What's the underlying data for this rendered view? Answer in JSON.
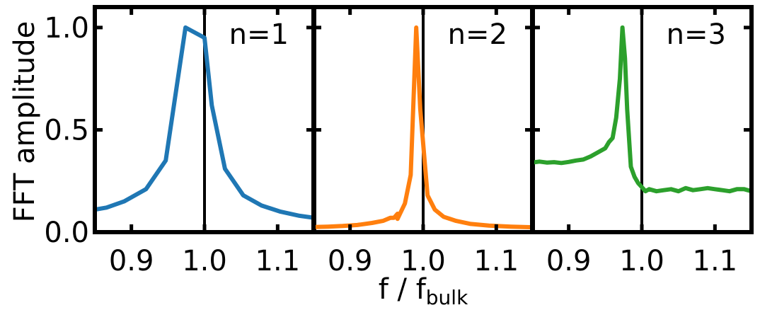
{
  "chart_data": {
    "type": "line",
    "ylabel": "FFT amplitude",
    "xlabel": "f / f",
    "xlabel_sub": "bulk",
    "xlim": [
      0.85,
      1.15
    ],
    "ylim": [
      0.0,
      1.1
    ],
    "xticks": [
      0.9,
      1.0,
      1.1
    ],
    "xtick_labels": [
      "0.9",
      "1.0",
      "1.1"
    ],
    "yticks": [
      0.0,
      0.5,
      1.0
    ],
    "ytick_labels": [
      "0.0",
      "0.5",
      "1.0"
    ],
    "reference_line_x": 1.0,
    "grid": false,
    "panels": [
      {
        "label": "n=1",
        "color": "#1f77b4",
        "x": [
          0.85,
          0.866,
          0.89,
          0.92,
          0.947,
          0.974,
          1.0,
          1.01,
          1.028,
          1.053,
          1.078,
          1.104,
          1.13,
          1.15
        ],
        "y": [
          0.11,
          0.12,
          0.15,
          0.21,
          0.35,
          1.0,
          0.95,
          0.62,
          0.31,
          0.18,
          0.13,
          0.1,
          0.08,
          0.07
        ]
      },
      {
        "label": "n=2",
        "color": "#ff7f0e",
        "x": [
          0.85,
          0.87,
          0.89,
          0.91,
          0.93,
          0.945,
          0.955,
          0.965,
          0.975,
          0.983,
          0.9905,
          0.996,
          1.006,
          1.016,
          1.028,
          1.045,
          1.065,
          1.09,
          1.12,
          1.15
        ],
        "y": [
          0.025,
          0.027,
          0.03,
          0.035,
          0.045,
          0.055,
          0.07,
          0.09,
          0.14,
          0.28,
          1.0,
          0.6,
          0.18,
          0.11,
          0.075,
          0.055,
          0.04,
          0.032,
          0.027,
          0.024
        ],
        "x_extra": [
          0.96,
          0.965
        ],
        "y_extra": [
          0.07,
          0.065
        ]
      },
      {
        "label": "n=3",
        "color": "#2ca02c",
        "x": [
          0.85,
          0.86,
          0.87,
          0.88,
          0.89,
          0.9,
          0.91,
          0.92,
          0.93,
          0.94,
          0.95,
          0.955,
          0.96,
          0.965,
          0.97,
          0.9735,
          0.977,
          0.98,
          0.985,
          0.99,
          0.995,
          1.0,
          1.005,
          1.01,
          1.02,
          1.03,
          1.04,
          1.05,
          1.06,
          1.07,
          1.08,
          1.09,
          1.1,
          1.11,
          1.12,
          1.13,
          1.14,
          1.15
        ],
        "y": [
          0.34,
          0.345,
          0.34,
          0.342,
          0.338,
          0.343,
          0.35,
          0.355,
          0.37,
          0.39,
          0.41,
          0.44,
          0.46,
          0.56,
          0.75,
          1.0,
          0.85,
          0.6,
          0.32,
          0.27,
          0.24,
          0.22,
          0.2,
          0.21,
          0.2,
          0.205,
          0.21,
          0.2,
          0.215,
          0.205,
          0.21,
          0.215,
          0.21,
          0.205,
          0.2,
          0.21,
          0.21,
          0.2
        ]
      }
    ]
  }
}
